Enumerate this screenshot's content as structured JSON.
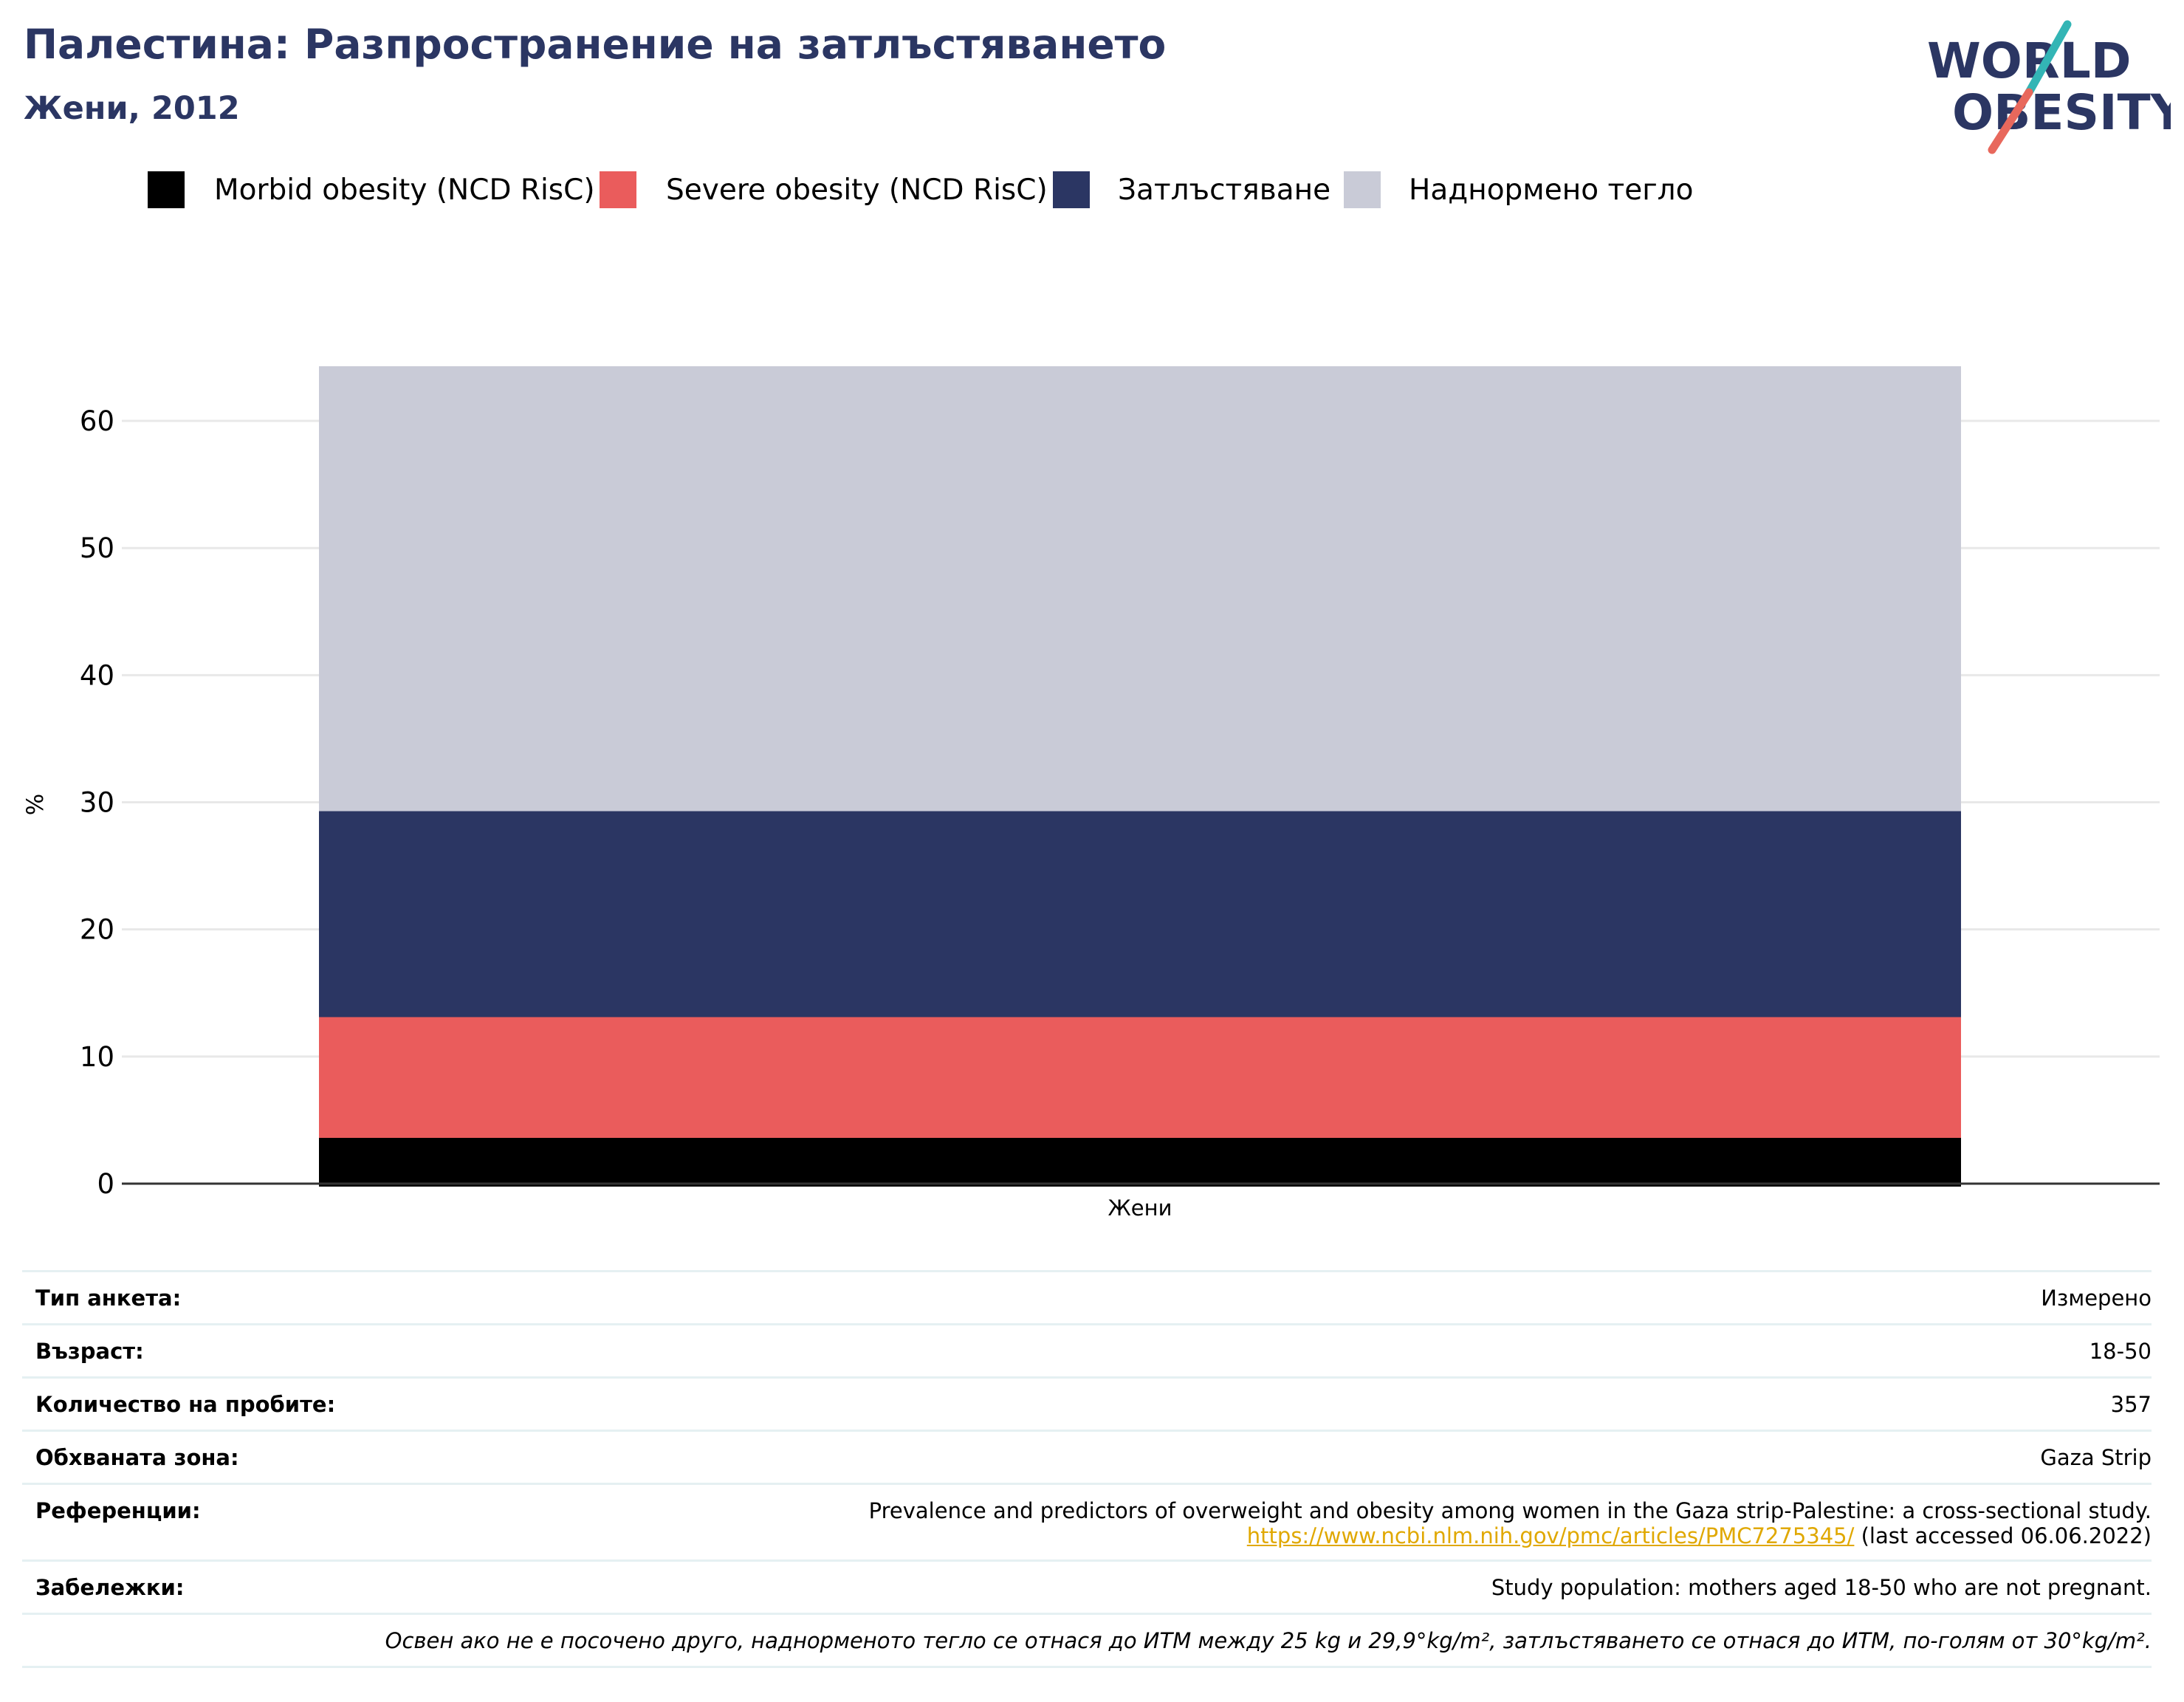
{
  "header": {
    "title": "Палестина: Разпространение на затлъстяването",
    "subtitle": "Жени, 2012"
  },
  "logo": {
    "line1": "WORLD",
    "line2": "OBESITY"
  },
  "colors": {
    "morbid": "#000000",
    "severe": "#ea5c5c",
    "obesity": "#2b3663",
    "overweight": "#c9cbd7",
    "title": "#2b3663",
    "link": "#e0a800",
    "logo_teal": "#33b5b5",
    "logo_coral": "#e8685c"
  },
  "legend": [
    {
      "label": "Morbid obesity (NCD RisC)",
      "color": "#000000"
    },
    {
      "label": "Severe obesity (NCD RisC)",
      "color": "#ea5c5c"
    },
    {
      "label": "Затлъстяване",
      "color": "#2b3663"
    },
    {
      "label": "Наднормено тегло",
      "color": "#c9cbd7"
    }
  ],
  "chart_data": {
    "type": "bar",
    "stacking": "overlay",
    "categories": [
      "Жени"
    ],
    "series": [
      {
        "name": "Наднормено тегло",
        "values": [
          64.3
        ]
      },
      {
        "name": "Затлъстяване",
        "values": [
          29.3
        ]
      },
      {
        "name": "Severe obesity (NCD RisC)",
        "values": [
          13.1
        ]
      },
      {
        "name": "Morbid obesity (NCD RisC)",
        "values": [
          3.6
        ]
      }
    ],
    "ylabel": "%",
    "xlabel": "",
    "ylim": [
      0,
      64.3
    ],
    "yticks": [
      0,
      10,
      20,
      30,
      40,
      50,
      60
    ],
    "grid": true,
    "legend_position": "top"
  },
  "meta": {
    "survey_type": {
      "label": "Тип анкета:",
      "value": "Измерено"
    },
    "age": {
      "label": "Възраст:",
      "value": "18-50"
    },
    "sample": {
      "label": "Количество на пробите:",
      "value": "357"
    },
    "area": {
      "label": "Обхваната зона:",
      "value": "Gaza Strip"
    },
    "references": {
      "label": "Референции:",
      "text": "Prevalence and predictors of overweight and obesity among women in the Gaza strip-Palestine: a cross-sectional study.",
      "link": "https://www.ncbi.nlm.nih.gov/pmc/articles/PMC7275345/",
      "accessed": " (last accessed 06.06.2022)"
    },
    "notes": {
      "label": "Забележки:",
      "value": "Study population: mothers aged 18-50 who are not pregnant."
    },
    "footnote": "Освен ако не е посочено друго, наднорменото тегло се отнася до ИТМ между 25 kg и 29,9°kg/m², затлъстяването се отнася до ИТМ, по-голям от 30°kg/m²."
  }
}
